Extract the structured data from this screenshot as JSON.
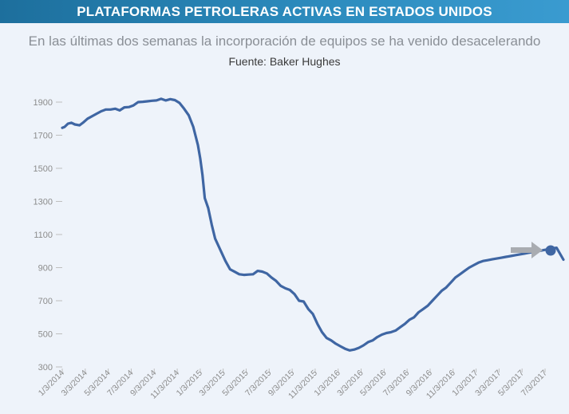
{
  "header": {
    "title": "PLATAFORMAS PETROLERAS ACTIVAS EN ESTADOS UNIDOS",
    "subtitle": "En las últimas dos semanas la incorporación de equipos se ha venido desacelerando",
    "source": "Fuente: Baker Hughes"
  },
  "colors": {
    "line": "#3f66a3",
    "banner": "#2c8bbd",
    "arrow": "#a9acb1",
    "marker": "#3f66a3"
  },
  "chart_data": {
    "type": "line",
    "title": "PLATAFORMAS PETROLERAS ACTIVAS EN ESTADOS UNIDOS",
    "xlabel": "",
    "ylabel": "",
    "ylim": [
      300,
      1900
    ],
    "yticks": [
      300,
      500,
      700,
      900,
      1100,
      1300,
      1500,
      1700,
      1900
    ],
    "xtick_labels": [
      "1/3/2014",
      "3/3/2014",
      "5/3/2014",
      "7/3/2014",
      "9/3/2014",
      "11/3/2014",
      "1/3/2015",
      "3/3/2015",
      "5/3/2015",
      "7/3/2015",
      "9/3/2015",
      "11/3/2015",
      "1/3/2016",
      "3/3/2016",
      "5/3/2016",
      "7/3/2016",
      "9/3/2016",
      "11/3/2016",
      "1/3/2017",
      "3/3/2017",
      "5/3/2017",
      "7/3/2017"
    ],
    "grid": false,
    "series": [
      {
        "name": "",
        "x": [
          0,
          0.1,
          0.25,
          0.4,
          0.55,
          0.75,
          0.9,
          1.1,
          1.3,
          1.5,
          1.7,
          1.9,
          2.1,
          2.3,
          2.5,
          2.7,
          2.9,
          3.1,
          3.3,
          3.5,
          3.7,
          3.9,
          4.1,
          4.3,
          4.5,
          4.7,
          4.9,
          5.1,
          5.3,
          5.5,
          5.7,
          5.9,
          6.0,
          6.1,
          6.2,
          6.35,
          6.5,
          6.65,
          6.8,
          6.9,
          7.1,
          7.3,
          7.5,
          7.7,
          7.9,
          8.1,
          8.3,
          8.5,
          8.7,
          8.9,
          9.1,
          9.3,
          9.5,
          9.7,
          9.9,
          10.1,
          10.3,
          10.5,
          10.7,
          10.9,
          11.1,
          11.3,
          11.5,
          11.7,
          11.9,
          12.1,
          12.3,
          12.5,
          12.7,
          12.9,
          13.1,
          13.3,
          13.5,
          13.7,
          13.9,
          14.1,
          14.3,
          14.5,
          14.7,
          14.9,
          15.1,
          15.3,
          15.5,
          15.7,
          15.9,
          16.1,
          16.3,
          16.5,
          16.7,
          16.9,
          17.1,
          17.3,
          17.5,
          17.7,
          17.9,
          18.1,
          18.3,
          18.5,
          18.7,
          18.9,
          19.1,
          19.3,
          19.5,
          19.7,
          19.9,
          20.1,
          20.3,
          20.5,
          20.7,
          20.9,
          21.1,
          21.3,
          21.5,
          21.8
        ],
        "y": [
          1745,
          1750,
          1770,
          1775,
          1765,
          1760,
          1775,
          1800,
          1815,
          1830,
          1845,
          1855,
          1855,
          1860,
          1850,
          1868,
          1870,
          1880,
          1900,
          1902,
          1905,
          1908,
          1910,
          1920,
          1910,
          1918,
          1912,
          1895,
          1860,
          1820,
          1750,
          1640,
          1560,
          1460,
          1320,
          1260,
          1160,
          1075,
          1030,
          1000,
          940,
          890,
          875,
          860,
          856,
          858,
          860,
          880,
          876,
          865,
          840,
          820,
          790,
          775,
          765,
          740,
          700,
          695,
          650,
          620,
          560,
          510,
          475,
          460,
          440,
          425,
          410,
          400,
          405,
          415,
          430,
          450,
          460,
          480,
          495,
          505,
          510,
          520,
          540,
          560,
          585,
          600,
          630,
          650,
          670,
          700,
          730,
          760,
          780,
          810,
          840,
          860,
          880,
          900,
          915,
          930,
          940,
          945,
          950,
          955,
          960,
          965,
          970,
          975,
          980,
          985,
          990,
          995,
          1000,
          1005,
          1010,
          1015,
          1020,
          948
        ]
      }
    ]
  }
}
